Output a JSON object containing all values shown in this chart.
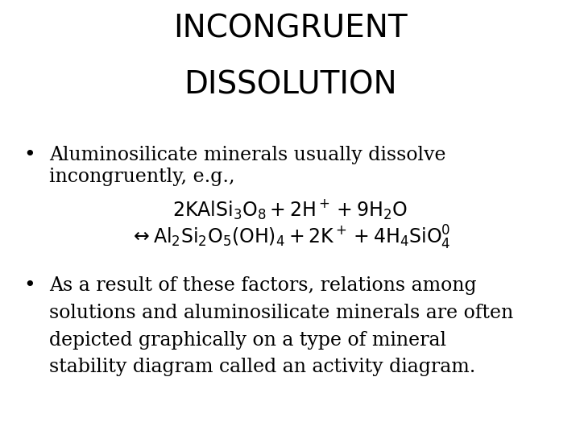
{
  "title_line1": "INCONGRUENT",
  "title_line2": "DISSOLUTION",
  "title_fontsize": 28,
  "title_fontweight": "normal",
  "bg_color": "#ffffff",
  "text_color": "#000000",
  "bullet1_line1": "Aluminosilicate minerals usually dissolve",
  "bullet1_line2": "incongruently, e.g.,",
  "equation1": "$2\\mathrm{KAlSi_3O_8} + 2\\mathrm{H^+} + 9\\mathrm{H_2O}$",
  "equation2": "$\\leftrightarrow \\mathrm{Al_2Si_2O_5(OH)_4} + 2\\mathrm{K^+} + 4\\mathrm{H_4SiO_4^{0}}$",
  "bullet2_text": "As a result of these factors, relations among\nsolutions and aluminosilicate minerals are often\ndepicted graphically on a type of mineral\nstability diagram called an activity diagram.",
  "body_fontsize": 17,
  "eq_fontsize": 17,
  "body_fontfamily": "serif",
  "title_fontfamily": "sans-serif"
}
